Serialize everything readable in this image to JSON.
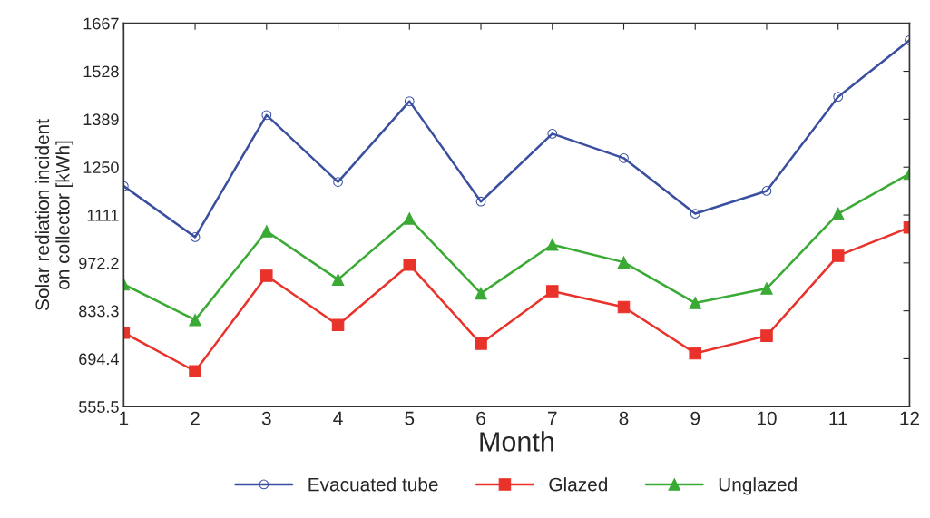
{
  "chart_data": {
    "type": "line",
    "xlabel": "Month",
    "ylabel": "Solar rediation incident\non collector [kWh]",
    "x": [
      1,
      2,
      3,
      4,
      5,
      6,
      7,
      8,
      9,
      10,
      11,
      12
    ],
    "xlim": [
      1,
      12
    ],
    "xticks": [
      1,
      2,
      3,
      4,
      5,
      6,
      7,
      8,
      9,
      10,
      11,
      12
    ],
    "ylim": [
      555.5,
      1667
    ],
    "yticks": [
      555.5,
      694.4,
      833.3,
      972.2,
      1111,
      1250,
      1389,
      1528,
      1667
    ],
    "grid": false,
    "legend": "bottom",
    "series": [
      {
        "name": "Evacuated tube",
        "color": "#3a4fa0",
        "marker": "circle",
        "values": [
          1195,
          1047,
          1401,
          1207,
          1441,
          1150,
          1347,
          1276,
          1115,
          1181,
          1454,
          1618
        ]
      },
      {
        "name": "Glazed",
        "color": "#e8322a",
        "marker": "square",
        "values": [
          770,
          658,
          935,
          792,
          967,
          738,
          890,
          844,
          710,
          761,
          993,
          1075
        ]
      },
      {
        "name": "Unglazed",
        "color": "#3aaa35",
        "marker": "triangle",
        "values": [
          910,
          807,
          1064,
          924,
          1101,
          884,
          1025,
          974,
          856,
          898,
          1115,
          1231
        ]
      }
    ]
  }
}
